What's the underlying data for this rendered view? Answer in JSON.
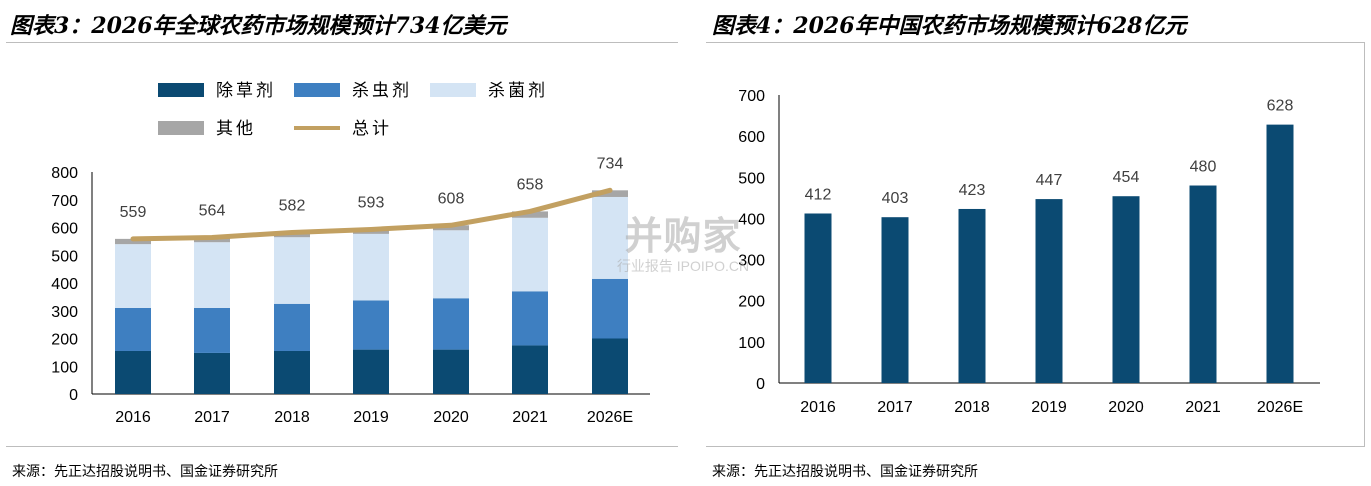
{
  "left_panel": {
    "title": "图表3：2026年全球农药市场规模预计734亿美元",
    "source": "来源：先正达招股说明书、国金证券研究所"
  },
  "right_panel": {
    "title": "图表4：2026年中国农药市场规模预计628亿元",
    "source": "来源：先正达招股说明书、国金证券研究所"
  },
  "watermark": {
    "main": "并购家",
    "sub": "行业报告 IPOIPO.CN"
  },
  "colors": {
    "herbicide": "#0b4a72",
    "insecticide": "#3e7fc1",
    "fungicide": "#d4e4f4",
    "other": "#a6a6a6",
    "total": "#c2a061",
    "china_bar": "#0b4a72"
  },
  "chart_data": [
    {
      "type": "bar",
      "stacked": true,
      "categories": [
        "2016",
        "2017",
        "2018",
        "2019",
        "2020",
        "2021",
        "2026E"
      ],
      "series": [
        {
          "name": "除草剂",
          "values": [
            155,
            148,
            155,
            160,
            160,
            175,
            200
          ]
        },
        {
          "name": "杀虫剂",
          "values": [
            155,
            162,
            170,
            177,
            185,
            195,
            215
          ]
        },
        {
          "name": "杀菌剂",
          "values": [
            230,
            237,
            240,
            240,
            245,
            265,
            295
          ]
        },
        {
          "name": "其他",
          "values": [
            19,
            17,
            17,
            16,
            18,
            23,
            24
          ]
        },
        {
          "name": "总计",
          "type": "line",
          "values": [
            559,
            564,
            582,
            593,
            608,
            658,
            734
          ]
        }
      ],
      "data_labels": [
        "559",
        "564",
        "582",
        "593",
        "608",
        "658",
        "734"
      ],
      "yticks": [
        "0",
        "100",
        "200",
        "300",
        "400",
        "500",
        "600",
        "700",
        "800"
      ],
      "ylim": [
        0,
        800
      ],
      "legend_position": "top",
      "grid": false
    },
    {
      "type": "bar",
      "categories": [
        "2016",
        "2017",
        "2018",
        "2019",
        "2020",
        "2021",
        "2026E"
      ],
      "values": [
        412,
        403,
        423,
        447,
        454,
        480,
        628
      ],
      "data_labels": [
        "412",
        "403",
        "423",
        "447",
        "454",
        "480",
        "628"
      ],
      "yticks": [
        "0",
        "100",
        "200",
        "300",
        "400",
        "500",
        "600",
        "700"
      ],
      "ylim": [
        0,
        700
      ],
      "grid": false
    }
  ]
}
